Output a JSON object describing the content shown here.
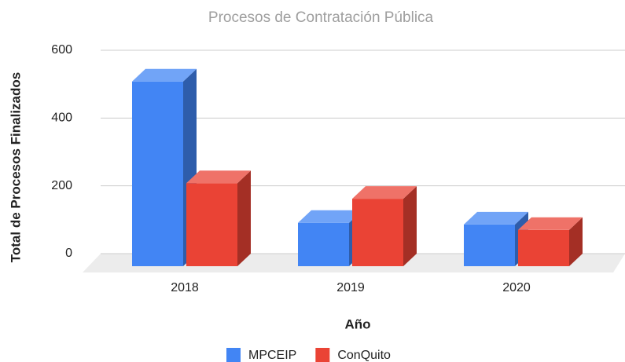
{
  "chart_data": {
    "type": "bar3d",
    "title": "Procesos de Contratación Pública",
    "xlabel": "Año",
    "ylabel": "Total de Procesos Finalizados",
    "categories": [
      "2018",
      "2019",
      "2020"
    ],
    "series": [
      {
        "name": "MPCEIP",
        "color": "#4285f4",
        "values": [
          545,
          128,
          123
        ]
      },
      {
        "name": "ConQuito",
        "color": "#ea4335",
        "values": [
          245,
          199,
          107
        ]
      }
    ],
    "ylim": [
      0,
      600
    ],
    "yticks": [
      0,
      200,
      400,
      600
    ],
    "grid": true,
    "legend": "bottom"
  }
}
